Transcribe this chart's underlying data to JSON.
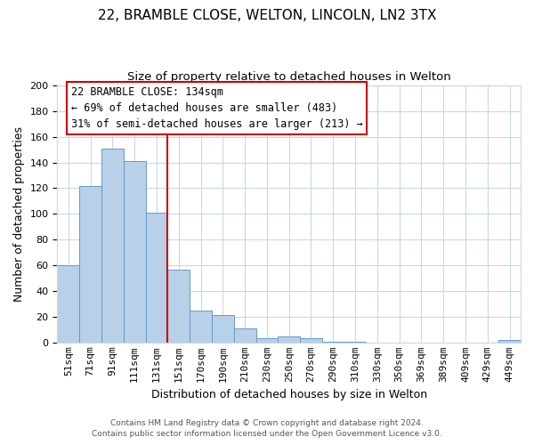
{
  "title": "22, BRAMBLE CLOSE, WELTON, LINCOLN, LN2 3TX",
  "subtitle": "Size of property relative to detached houses in Welton",
  "xlabel": "Distribution of detached houses by size in Welton",
  "ylabel": "Number of detached properties",
  "categories": [
    "51sqm",
    "71sqm",
    "91sqm",
    "111sqm",
    "131sqm",
    "151sqm",
    "170sqm",
    "190sqm",
    "210sqm",
    "230sqm",
    "250sqm",
    "270sqm",
    "290sqm",
    "310sqm",
    "330sqm",
    "350sqm",
    "369sqm",
    "389sqm",
    "409sqm",
    "429sqm",
    "449sqm"
  ],
  "values": [
    60,
    122,
    151,
    141,
    101,
    57,
    25,
    22,
    11,
    4,
    5,
    4,
    1,
    1,
    0,
    0,
    0,
    0,
    0,
    0,
    2
  ],
  "bar_color": "#b8d0e8",
  "bar_edge_color": "#6699cc",
  "vline_x": 4.5,
  "vline_color": "#cc0000",
  "annotation_title": "22 BRAMBLE CLOSE: 134sqm",
  "annotation_line1": "← 69% of detached houses are smaller (483)",
  "annotation_line2": "31% of semi-detached houses are larger (213) →",
  "annotation_box_color": "#ffffff",
  "annotation_box_edge": "#cc0000",
  "ylim": [
    0,
    200
  ],
  "yticks": [
    0,
    20,
    40,
    60,
    80,
    100,
    120,
    140,
    160,
    180,
    200
  ],
  "footer1": "Contains HM Land Registry data © Crown copyright and database right 2024.",
  "footer2": "Contains public sector information licensed under the Open Government Licence v3.0.",
  "background_color": "#ffffff",
  "grid_color": "#c8d8e8",
  "title_fontsize": 11,
  "subtitle_fontsize": 9.5,
  "xlabel_fontsize": 9,
  "ylabel_fontsize": 9,
  "tick_fontsize": 8,
  "footer_fontsize": 6.5,
  "ann_fontsize": 8.5
}
